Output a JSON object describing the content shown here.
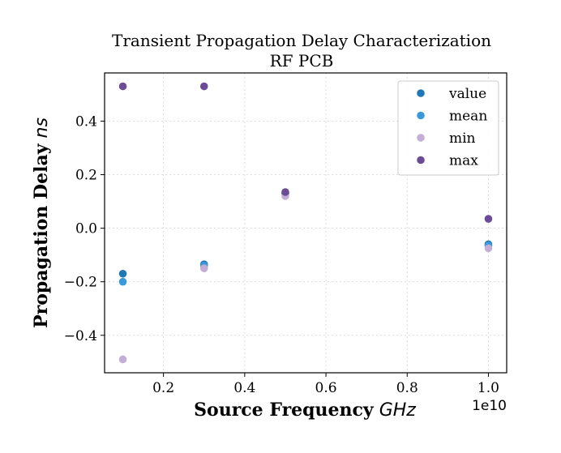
{
  "chart_data": {
    "type": "scatter",
    "title": "Transient Propagation Delay Characterization",
    "subtitle": "RF PCB",
    "xlabel": "Source Frequency",
    "xlabel_unit": "GHz",
    "ylabel": "Propagation Delay",
    "ylabel_unit": "ns",
    "x_offset_label": "1e10",
    "xlim": [
      550000000,
      10450000000
    ],
    "ylim": [
      -0.54,
      0.58
    ],
    "x_ticks": [
      2000000000,
      4000000000,
      6000000000,
      8000000000,
      10000000000
    ],
    "x_tick_labels": [
      "0.2",
      "0.4",
      "0.6",
      "0.8",
      "1.0"
    ],
    "y_ticks": [
      -0.4,
      -0.2,
      0.0,
      0.2,
      0.4
    ],
    "y_tick_labels": [
      "−0.4",
      "−0.2",
      "0.0",
      "0.2",
      "0.4"
    ],
    "grid": true,
    "legend_position": "top-right",
    "x": [
      1000000000,
      3000000000,
      5000000000,
      10000000000
    ],
    "series": [
      {
        "name": "value",
        "color": "#1f77b4",
        "values": [
          -0.17,
          -0.135,
          0.13,
          -0.06
        ]
      },
      {
        "name": "mean",
        "color": "#3a9ad9",
        "values": [
          -0.2,
          -0.14,
          0.13,
          -0.065
        ]
      },
      {
        "name": "min",
        "color": "#c3afd6",
        "values": [
          -0.49,
          -0.15,
          0.12,
          -0.075
        ]
      },
      {
        "name": "max",
        "color": "#6b4c96",
        "values": [
          0.53,
          0.53,
          0.135,
          0.035
        ]
      }
    ]
  }
}
